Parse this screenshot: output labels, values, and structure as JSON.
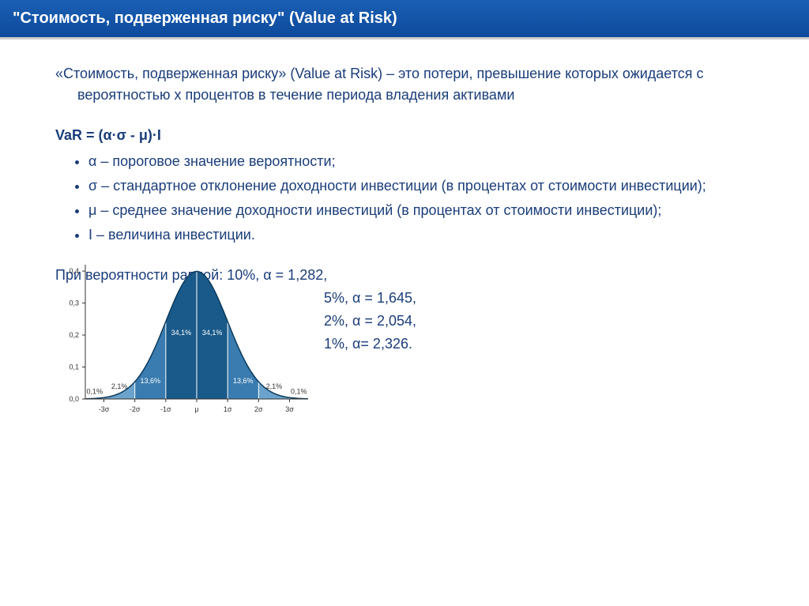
{
  "header": {
    "title": "\"Стоимость, подверженная риску\" (Value at Risk)"
  },
  "intro": "«Стоимость, подверженная риску» (Value at Risk) – это потери, превышение которых ожидается с вероятностью x процентов в течение периода владения активами",
  "formula": "VaR = (α·σ - μ)·I",
  "definitions": [
    "α – пороговое значение вероятности;",
    "σ – стандартное отклонение доходности инвестиции (в процентах от стоимости инвестиции);",
    "μ – среднее значение доходности инвестиций (в процентах от стоимости инвестиции);",
    "I – величина инвестиции."
  ],
  "probabilities": {
    "intro": "При вероятности равной: 10%, α = 1,282,",
    "lines": [
      "5%, α = 1,645,",
      "2%, α = 2,054,",
      "1%, α= 2,326."
    ]
  },
  "chart": {
    "type": "bell-curve",
    "y_ticks": [
      "0,0",
      "0,1",
      "0,2",
      "0,3",
      "0,4"
    ],
    "x_ticks": [
      "-3σ",
      "-2σ",
      "-1σ",
      "μ",
      "1σ",
      "2σ",
      "3σ"
    ],
    "ylim": [
      0,
      0.4
    ],
    "region_labels": [
      "0,1%",
      "2,1%",
      "13,6%",
      "34,1%",
      "34,1%",
      "13,6%",
      "2,1%",
      "0,1%"
    ],
    "colors": {
      "curve_fill_dark": "#1a5a8a",
      "curve_fill_mid": "#3a7cb0",
      "curve_fill_light": "#6ba3cc",
      "curve_fill_tail": "#a8cce0",
      "curve_stroke": "#0b3a5c",
      "axis": "#333333",
      "label_white": "#ffffff",
      "label_dark": "#333333",
      "yaxis_title_color": "#888888",
      "divider": "#ffffff"
    },
    "fontsize_axis": 9,
    "fontsize_region": 9
  },
  "text_color": "#1a3d7a"
}
